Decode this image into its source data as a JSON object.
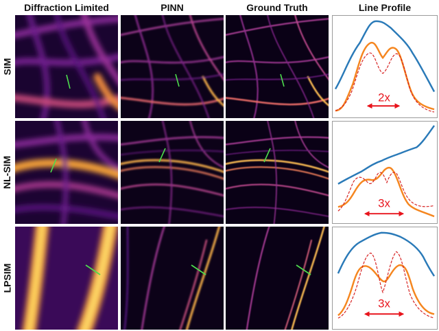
{
  "columns": {
    "diffraction": "Diffraction Limited",
    "pinn": "PINN",
    "ground_truth": "Ground Truth",
    "line_profile": "Line Profile"
  },
  "rows": {
    "sim": {
      "label": "SIM",
      "factor": "2x"
    },
    "nlsim": {
      "label": "NL-SIM",
      "factor": "3x"
    },
    "lpsim": {
      "label": "LPSIM",
      "factor": "3x"
    }
  },
  "colors": {
    "diffraction_series": "#2a7ab8",
    "pinn_series": "#f5861f",
    "ground_truth_series": "#d62020",
    "arrow": "#e8141c",
    "line_marker": "#4ddc4d"
  }
}
